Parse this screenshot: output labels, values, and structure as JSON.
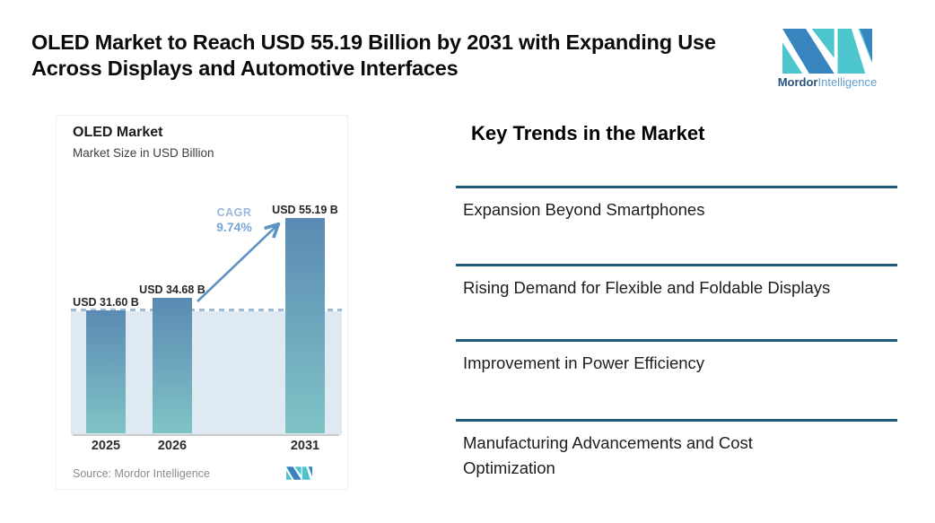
{
  "header": {
    "title": "OLED Market to Reach USD 55.19 Billion by 2031 with Expanding Use Across Displays and Automotive Interfaces",
    "brand": {
      "name": "Mordor",
      "suffix": "Intelligence"
    }
  },
  "chart": {
    "title": "OLED Market",
    "subtitle": "Market Size in USD Billion",
    "cagr_label": "CAGR",
    "cagr_value": "9.74%",
    "source": "Source: Mordor Intelligence"
  },
  "chart_data": {
    "type": "bar",
    "title": "OLED Market",
    "subtitle": "Market Size in USD Billion",
    "categories": [
      "2025",
      "2026",
      "2031"
    ],
    "values": [
      31.6,
      34.68,
      55.19
    ],
    "bar_labels": [
      "USD 31.60 B",
      "USD 34.68 B",
      "USD 55.19 B"
    ],
    "cagr_percent": 9.74,
    "xlabel": "",
    "ylabel": "Market Size in USD Billion",
    "ylim": [
      0,
      60
    ],
    "grid": false,
    "legend": null,
    "reference_line": "dashed line at 2025 value (31.60)",
    "source": "Source: Mordor Intelligence"
  },
  "trends": {
    "heading": "Key Trends in the Market",
    "items": [
      "Expansion Beyond Smartphones",
      "Rising Demand for Flexible and Foldable Displays",
      "Improvement in Power Efficiency",
      "Manufacturing Advancements and Cost Optimization"
    ]
  },
  "icons": {
    "brand_logo": "mordor-intelligence-m-mark"
  },
  "theme": {
    "brand_blue": "#3884bf",
    "brand_teal": "#4cc5cd",
    "rule": "#1f5a7d",
    "bar_top": "#5a8ab3",
    "bar_bottom": "#80c3c6",
    "arrow": "#5d92c3",
    "dash": "#9fbcd4",
    "shade": "#dfe9f1"
  }
}
